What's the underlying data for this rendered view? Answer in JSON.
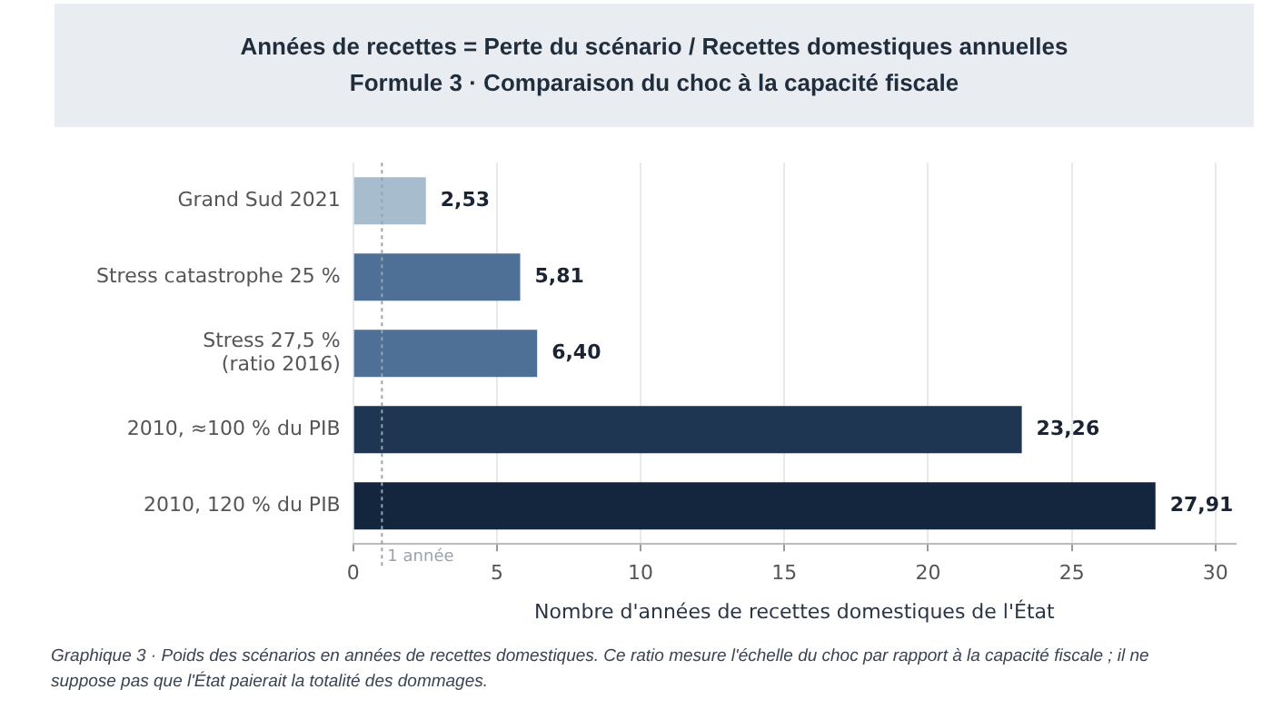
{
  "chart_data": {
    "type": "bar",
    "orientation": "horizontal",
    "title": "Années de recettes  =  Perte du scénario / Recettes domestiques annuelles",
    "subtitle": "Formule 3  ·  Comparaison du choc à la capacité fiscale",
    "xlabel": "Nombre d'années de recettes domestiques de l'État",
    "categories": [
      "Grand Sud 2021",
      "Stress catastrophe 25 %",
      "Stress 27,5 %\n(ratio 2016)",
      "2010, ≈100 % du PIB",
      "2010, 120 % du PIB"
    ],
    "values": [
      2.53,
      5.81,
      6.4,
      23.26,
      27.91
    ],
    "value_labels": [
      "2,53",
      "5,81",
      "6,40",
      "23,26",
      "27,91"
    ],
    "colors": [
      "#a7bccd",
      "#4f7096",
      "#4f7096",
      "#1f3653",
      "#14263d"
    ],
    "xlim": [
      0,
      30.7
    ],
    "xticks": [
      0,
      5,
      10,
      15,
      20,
      25,
      30
    ],
    "grid": "x",
    "legend": false,
    "ref_lines": [
      {
        "axis": "x",
        "value": 1,
        "label": "1 année",
        "color": "#9aa3ad",
        "line_style": "dotted"
      }
    ],
    "annotations": [
      "Graphique 3  ·  Poids des scénarios en années de recettes domestiques. Ce ratio mesure l'échelle du choc par rapport à la capacité fiscale ; il ne suppose pas que l'État paierait la totalité des dommages."
    ]
  }
}
